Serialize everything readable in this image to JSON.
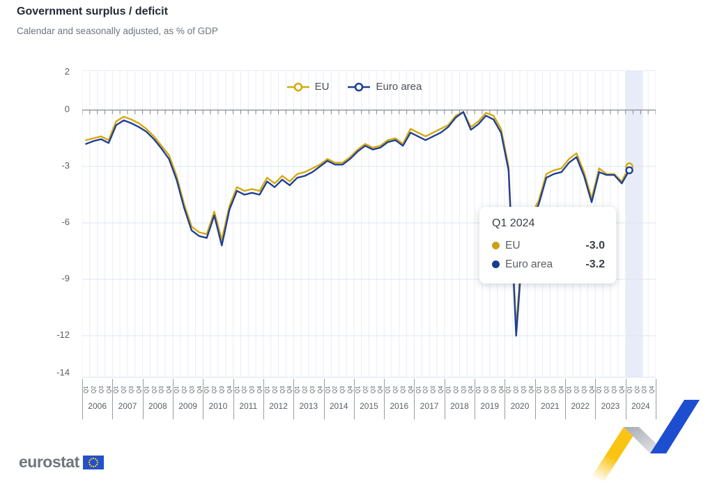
{
  "header": {
    "title": "Government surplus / deficit",
    "subtitle": "Calendar and seasonally adjusted, as % of GDP"
  },
  "legend": [
    {
      "label": "EU",
      "color": "#D5A90F"
    },
    {
      "label": "Euro area",
      "color": "#1F4096"
    }
  ],
  "tooltip": {
    "title": "Q1 2024",
    "rows": [
      {
        "label": "EU",
        "value": "-3.0",
        "color": "#C9A21B"
      },
      {
        "label": "Euro area",
        "value": "-3.2",
        "color": "#173C8F"
      }
    ]
  },
  "footer": {
    "logo_text": "eurostat"
  },
  "colors": {
    "eu_line": "#D5A90F",
    "euro_area_line": "#1F4096",
    "grid_vertical": "#e9edf7",
    "grid_horizontal": "#dde4f0",
    "zero_axis": "#85898f",
    "highlight_band": "#d9e0f4",
    "axis_text": "#595f66",
    "flag_blue": "#2450c8",
    "flag_stars": "#ffd617",
    "ribbon_yellow": "#F9C412",
    "ribbon_gray_dark": "#a7abb4",
    "ribbon_gray_light": "#e9eaee",
    "ribbon_blue": "#1d4ecf"
  },
  "chart_data": {
    "type": "line",
    "title": "Government surplus / deficit",
    "subtitle": "Calendar and seasonally adjusted, as % of GDP",
    "ylabel": "% of GDP",
    "ylim": [
      -14,
      2
    ],
    "y_ticks": [
      2,
      0,
      -3,
      -6,
      -9,
      -12,
      -14
    ],
    "grid": true,
    "legend_position": "top-center",
    "years": [
      2006,
      2007,
      2008,
      2009,
      2010,
      2011,
      2012,
      2013,
      2014,
      2015,
      2016,
      2017,
      2018,
      2019,
      2020,
      2021,
      2022,
      2023,
      2024
    ],
    "quarter_labels": [
      "Q1",
      "Q2",
      "Q3",
      "Q4"
    ],
    "x_start": "2006-Q1",
    "x_end_data": "2024-Q1",
    "x_end_axis": "2024-Q4",
    "highlight_x": "2024-Q1",
    "series": [
      {
        "name": "EU",
        "color": "#D5A90F",
        "values": [
          -1.6,
          -1.5,
          -1.4,
          -1.6,
          -0.6,
          -0.35,
          -0.5,
          -0.7,
          -1.0,
          -1.4,
          -1.9,
          -2.4,
          -3.5,
          -5.0,
          -6.2,
          -6.5,
          -6.6,
          -5.4,
          -6.9,
          -5.1,
          -4.1,
          -4.3,
          -4.2,
          -4.3,
          -3.6,
          -3.9,
          -3.5,
          -3.8,
          -3.4,
          -3.3,
          -3.1,
          -2.9,
          -2.6,
          -2.8,
          -2.8,
          -2.5,
          -2.1,
          -1.8,
          -2.0,
          -1.9,
          -1.6,
          -1.5,
          -1.8,
          -1.0,
          -1.2,
          -1.4,
          -1.2,
          -1.0,
          -0.8,
          -0.3,
          -0.1,
          -0.9,
          -0.6,
          -0.15,
          -0.3,
          -1.0,
          -3.0,
          -11.6,
          -6.2,
          -5.6,
          -4.8,
          -3.4,
          -3.2,
          -3.1,
          -2.6,
          -2.3,
          -3.3,
          -4.7,
          -3.1,
          -3.4,
          -3.4,
          -3.8,
          -3.0
        ]
      },
      {
        "name": "Euro area",
        "color": "#1F4096",
        "values": [
          -1.8,
          -1.65,
          -1.55,
          -1.75,
          -0.8,
          -0.55,
          -0.7,
          -0.9,
          -1.15,
          -1.55,
          -2.05,
          -2.6,
          -3.7,
          -5.2,
          -6.4,
          -6.7,
          -6.8,
          -5.6,
          -7.2,
          -5.3,
          -4.3,
          -4.5,
          -4.4,
          -4.5,
          -3.8,
          -4.1,
          -3.7,
          -4.0,
          -3.6,
          -3.5,
          -3.3,
          -3.0,
          -2.7,
          -2.9,
          -2.9,
          -2.6,
          -2.2,
          -1.9,
          -2.1,
          -2.0,
          -1.7,
          -1.6,
          -1.9,
          -1.2,
          -1.4,
          -1.6,
          -1.4,
          -1.2,
          -0.9,
          -0.4,
          -0.1,
          -1.05,
          -0.75,
          -0.3,
          -0.5,
          -1.2,
          -3.2,
          -12.0,
          -6.5,
          -5.9,
          -5.0,
          -3.6,
          -3.4,
          -3.3,
          -2.8,
          -2.5,
          -3.5,
          -4.9,
          -3.3,
          -3.45,
          -3.45,
          -3.9,
          -3.2
        ]
      }
    ],
    "last_point_values": {
      "EU": -3.0,
      "Euro area": -3.2,
      "period": "Q1 2024"
    }
  }
}
